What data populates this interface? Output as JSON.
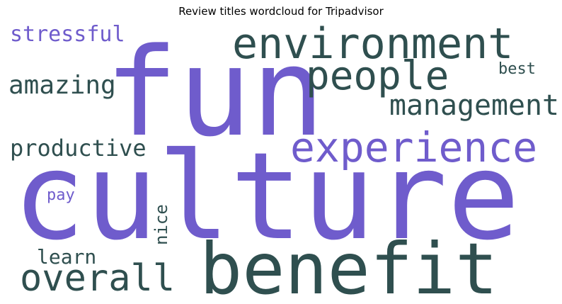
{
  "chart_data": {
    "type": "wordcloud",
    "title": "Review titles wordcloud for Tripadvisor",
    "colors": {
      "purple": "#6f5ccc",
      "slate": "#2f4f4f",
      "background": "#ffffff"
    },
    "words": [
      {
        "text": "fun",
        "color": "purple"
      },
      {
        "text": "culture",
        "color": "purple"
      },
      {
        "text": "benefit",
        "color": "slate"
      },
      {
        "text": "environment",
        "color": "slate"
      },
      {
        "text": "experience",
        "color": "purple"
      },
      {
        "text": "people",
        "color": "slate"
      },
      {
        "text": "management",
        "color": "slate"
      },
      {
        "text": "overall",
        "color": "slate"
      },
      {
        "text": "amazing",
        "color": "slate"
      },
      {
        "text": "productive",
        "color": "slate"
      },
      {
        "text": "stressful",
        "color": "purple"
      },
      {
        "text": "learn",
        "color": "slate"
      },
      {
        "text": "best",
        "color": "slate"
      },
      {
        "text": "pay",
        "color": "purple"
      },
      {
        "text": "nice",
        "color": "slate"
      }
    ]
  }
}
